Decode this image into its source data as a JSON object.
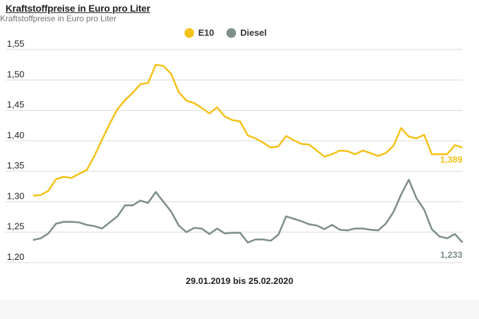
{
  "chart_data": {
    "type": "line",
    "title": "Kraftstoffpreise in Euro pro Liter",
    "subtitle": "Kraftstoffpreise in Euro pro Liter",
    "xlabel": "29.01.2019 bis 25.02.2020",
    "ylabel": "",
    "ylim": [
      1.2,
      1.55
    ],
    "yticks": [
      "1,55",
      "1,50",
      "1,45",
      "1,40",
      "1,35",
      "1,30",
      "1,25",
      "1,20"
    ],
    "ytick_values": [
      1.55,
      1.5,
      1.45,
      1.4,
      1.35,
      1.3,
      1.25,
      1.2
    ],
    "series": [
      {
        "name": "E10",
        "color": "#f5c21b",
        "end_label": "1,389",
        "values": [
          1.31,
          1.311,
          1.318,
          1.337,
          1.341,
          1.339,
          1.346,
          1.352,
          1.375,
          1.402,
          1.428,
          1.452,
          1.467,
          1.479,
          1.493,
          1.495,
          1.525,
          1.523,
          1.51,
          1.48,
          1.466,
          1.462,
          1.454,
          1.445,
          1.455,
          1.44,
          1.434,
          1.432,
          1.409,
          1.404,
          1.397,
          1.389,
          1.391,
          1.408,
          1.401,
          1.395,
          1.394,
          1.384,
          1.374,
          1.378,
          1.384,
          1.383,
          1.378,
          1.384,
          1.38,
          1.375,
          1.38,
          1.392,
          1.421,
          1.407,
          1.404,
          1.41,
          1.378,
          1.378,
          1.378,
          1.393,
          1.389
        ]
      },
      {
        "name": "Diesel",
        "color": "#7f8f8a",
        "end_label": "1,233",
        "values": [
          1.237,
          1.24,
          1.248,
          1.264,
          1.267,
          1.267,
          1.266,
          1.262,
          1.26,
          1.256,
          1.266,
          1.276,
          1.294,
          1.294,
          1.302,
          1.298,
          1.316,
          1.3,
          1.284,
          1.261,
          1.25,
          1.257,
          1.256,
          1.247,
          1.256,
          1.248,
          1.249,
          1.249,
          1.233,
          1.238,
          1.238,
          1.236,
          1.246,
          1.276,
          1.272,
          1.268,
          1.263,
          1.261,
          1.255,
          1.262,
          1.254,
          1.253,
          1.256,
          1.256,
          1.254,
          1.253,
          1.264,
          1.283,
          1.312,
          1.336,
          1.306,
          1.287,
          1.255,
          1.243,
          1.24,
          1.247,
          1.233
        ]
      }
    ],
    "grid": true,
    "legend_position": "top-center"
  }
}
